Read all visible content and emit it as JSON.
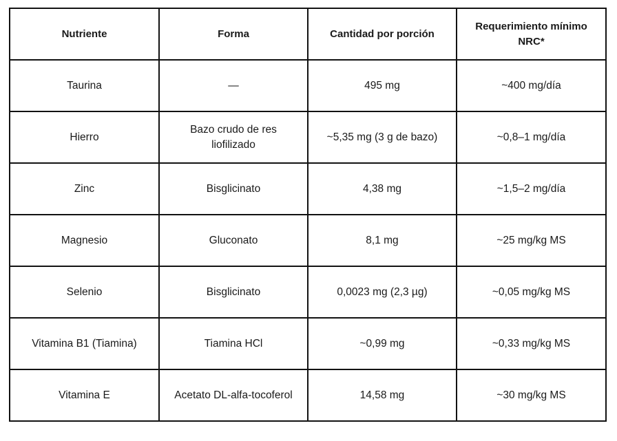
{
  "table": {
    "headers": [
      "Nutriente",
      "Forma",
      "Cantidad por porción",
      "Requerimiento mínimo NRC*"
    ],
    "rows": [
      [
        "Taurina",
        "—",
        "495 mg",
        "~400 mg/día"
      ],
      [
        "Hierro",
        "Bazo crudo de res liofilizado",
        "~5,35 mg (3 g de bazo)",
        "~0,8–1 mg/día"
      ],
      [
        "Zinc",
        "Bisglicinato",
        "4,38 mg",
        "~1,5–2 mg/día"
      ],
      [
        "Magnesio",
        "Gluconato",
        "8,1 mg",
        "~25 mg/kg MS"
      ],
      [
        "Selenio",
        "Bisglicinato",
        "0,0023 mg (2,3 µg)",
        "~0,05 mg/kg MS"
      ],
      [
        "Vitamina B1 (Tiamina)",
        "Tiamina HCl",
        "~0,99 mg",
        "~0,33 mg/kg MS"
      ],
      [
        "Vitamina E",
        "Acetato DL-alfa-tocoferol",
        "14,58 mg",
        "~30 mg/kg MS"
      ]
    ]
  }
}
